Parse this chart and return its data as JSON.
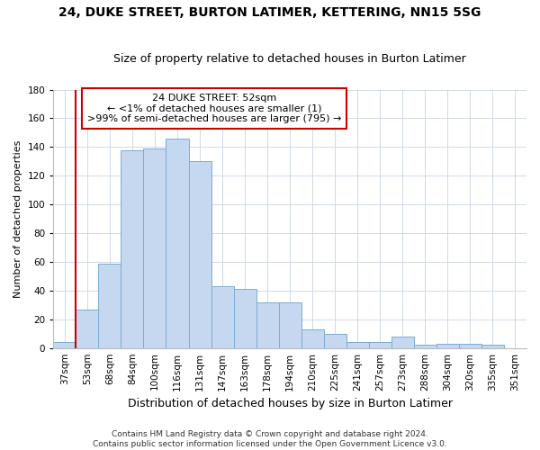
{
  "title": "24, DUKE STREET, BURTON LATIMER, KETTERING, NN15 5SG",
  "subtitle": "Size of property relative to detached houses in Burton Latimer",
  "xlabel": "Distribution of detached houses by size in Burton Latimer",
  "ylabel": "Number of detached properties",
  "categories": [
    "37sqm",
    "53sqm",
    "68sqm",
    "84sqm",
    "100sqm",
    "116sqm",
    "131sqm",
    "147sqm",
    "163sqm",
    "178sqm",
    "194sqm",
    "210sqm",
    "225sqm",
    "241sqm",
    "257sqm",
    "273sqm",
    "288sqm",
    "304sqm",
    "320sqm",
    "335sqm",
    "351sqm"
  ],
  "values": [
    4,
    27,
    59,
    138,
    139,
    146,
    130,
    43,
    41,
    32,
    32,
    13,
    10,
    4,
    4,
    8,
    2,
    3,
    3,
    2,
    0
  ],
  "bar_color": "#c5d8f0",
  "bar_edge_color": "#7aadd4",
  "ylim": [
    0,
    180
  ],
  "yticks": [
    0,
    20,
    40,
    60,
    80,
    100,
    120,
    140,
    160,
    180
  ],
  "property_label": "24 DUKE STREET: 52sqm",
  "annotation_line1": "← <1% of detached houses are smaller (1)",
  "annotation_line2": ">99% of semi-detached houses are larger (795) →",
  "footer1": "Contains HM Land Registry data © Crown copyright and database right 2024.",
  "footer2": "Contains public sector information licensed under the Open Government Licence v3.0.",
  "bg_color": "#ffffff",
  "grid_color": "#d0d8e8",
  "annotation_box_color": "#ffffff",
  "annotation_border_color": "#cc0000",
  "vline_color": "#cc0000",
  "title_fontsize": 10,
  "subtitle_fontsize": 9,
  "xlabel_fontsize": 9,
  "ylabel_fontsize": 8,
  "tick_fontsize": 7.5,
  "annotation_fontsize": 8,
  "footer_fontsize": 6.5
}
